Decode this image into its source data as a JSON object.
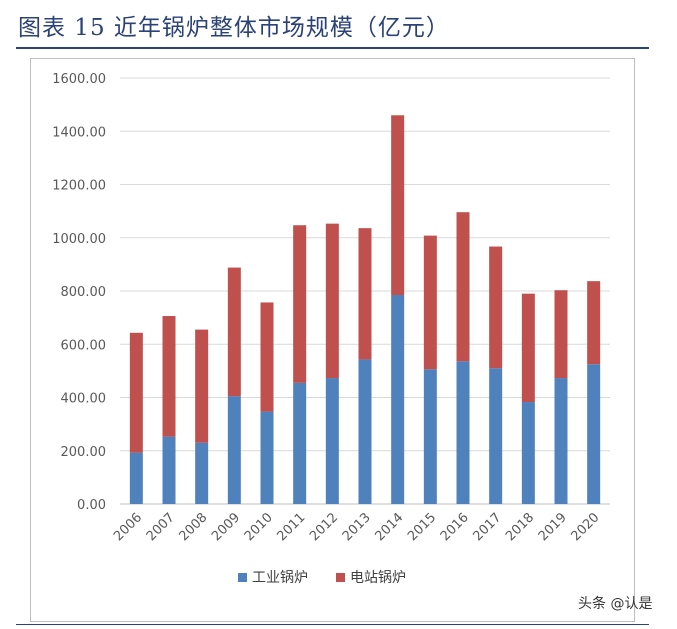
{
  "header": {
    "title": "图表 15 近年锅炉整体市场规模（亿元）"
  },
  "watermark": "头条 @认是",
  "chart_data": {
    "type": "bar",
    "stacked": true,
    "categories": [
      "2006",
      "2007",
      "2008",
      "2009",
      "2010",
      "2011",
      "2012",
      "2013",
      "2014",
      "2015",
      "2016",
      "2017",
      "2018",
      "2019",
      "2020"
    ],
    "series": [
      {
        "name": "工业锅炉",
        "color": "#4f81bd",
        "values": [
          193,
          253,
          230,
          405,
          347,
          455,
          473,
          543,
          785,
          506,
          536,
          510,
          383,
          473,
          525
        ]
      },
      {
        "name": "电站锅炉",
        "color": "#c0504d",
        "values": [
          450,
          453,
          425,
          483,
          410,
          592,
          580,
          493,
          675,
          502,
          560,
          457,
          407,
          330,
          312
        ]
      }
    ],
    "y_tick_labels": [
      "0.00",
      "200.00",
      "400.00",
      "600.00",
      "800.00",
      "1000.00",
      "1200.00",
      "1400.00",
      "1600.00"
    ],
    "ylim": [
      0,
      1600
    ],
    "grid": true,
    "legend_position": "bottom"
  }
}
